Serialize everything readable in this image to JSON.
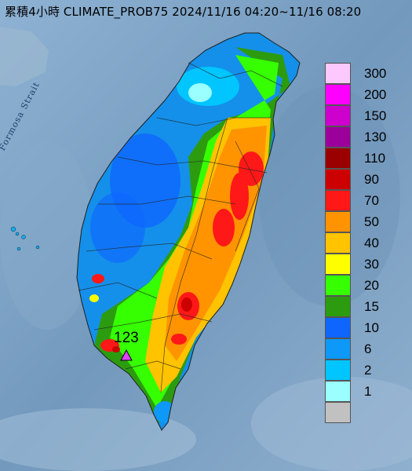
{
  "title": "累積4小時 CLIMATE_PROB75 2024/11/16 04:20~11/16 08:20",
  "map_label": "Formosa Strait",
  "max_value": {
    "value": "123",
    "marker_color": "#e040ff"
  },
  "legend": [
    {
      "label": "300",
      "color": "#fdc8fd"
    },
    {
      "label": "200",
      "color": "#fe00fe"
    },
    {
      "label": "150",
      "color": "#cd00cd"
    },
    {
      "label": "130",
      "color": "#9b009b"
    },
    {
      "label": "110",
      "color": "#9a0000"
    },
    {
      "label": "90",
      "color": "#cd0000"
    },
    {
      "label": "70",
      "color": "#ff1818"
    },
    {
      "label": "50",
      "color": "#ff9400"
    },
    {
      "label": "40",
      "color": "#ffc300"
    },
    {
      "label": "30",
      "color": "#ffff00"
    },
    {
      "label": "20",
      "color": "#35ff00"
    },
    {
      "label": "15",
      "color": "#2d9b10"
    },
    {
      "label": "10",
      "color": "#0e66ff"
    },
    {
      "label": "6",
      "color": "#0e98f7"
    },
    {
      "label": "2",
      "color": "#00c5ff"
    },
    {
      "label": "1",
      "color": "#9bffff"
    },
    {
      "label": "",
      "color": "#c1c1c1"
    }
  ]
}
